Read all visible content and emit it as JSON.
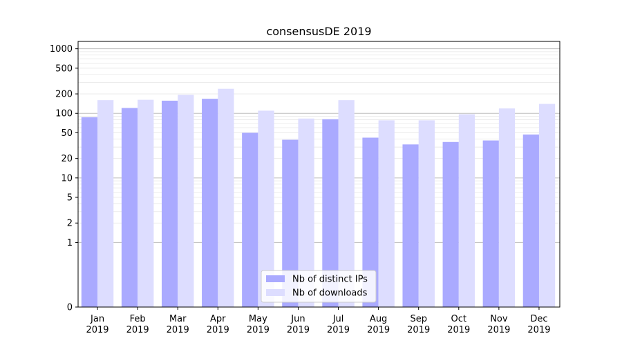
{
  "chart_data": {
    "type": "bar",
    "title": "consensusDE 2019",
    "xlabel": "",
    "ylabel": "",
    "yscale": "symlog",
    "ylim": [
      0,
      1300
    ],
    "yticks": [
      0,
      1,
      2,
      5,
      10,
      20,
      50,
      100,
      200,
      500,
      1000
    ],
    "ytick_labels": [
      "0",
      "1",
      "2",
      "5",
      "10",
      "20",
      "50",
      "100",
      "200",
      "500",
      "1000"
    ],
    "grid": true,
    "legend_position": "bottom-center",
    "categories": [
      [
        "Jan",
        "2019"
      ],
      [
        "Feb",
        "2019"
      ],
      [
        "Mar",
        "2019"
      ],
      [
        "Apr",
        "2019"
      ],
      [
        "May",
        "2019"
      ],
      [
        "Jun",
        "2019"
      ],
      [
        "Jul",
        "2019"
      ],
      [
        "Aug",
        "2019"
      ],
      [
        "Sep",
        "2019"
      ],
      [
        "Oct",
        "2019"
      ],
      [
        "Nov",
        "2019"
      ],
      [
        "Dec",
        "2019"
      ]
    ],
    "series": [
      {
        "name": "Nb of distinct IPs",
        "color": "#aaaaff",
        "values": [
          87,
          121,
          157,
          168,
          50,
          39,
          81,
          42,
          33,
          36,
          38,
          47
        ]
      },
      {
        "name": "Nb of downloads",
        "color": "#ddddff",
        "values": [
          160,
          162,
          193,
          240,
          110,
          83,
          160,
          78,
          78,
          97,
          119,
          140
        ]
      }
    ]
  }
}
